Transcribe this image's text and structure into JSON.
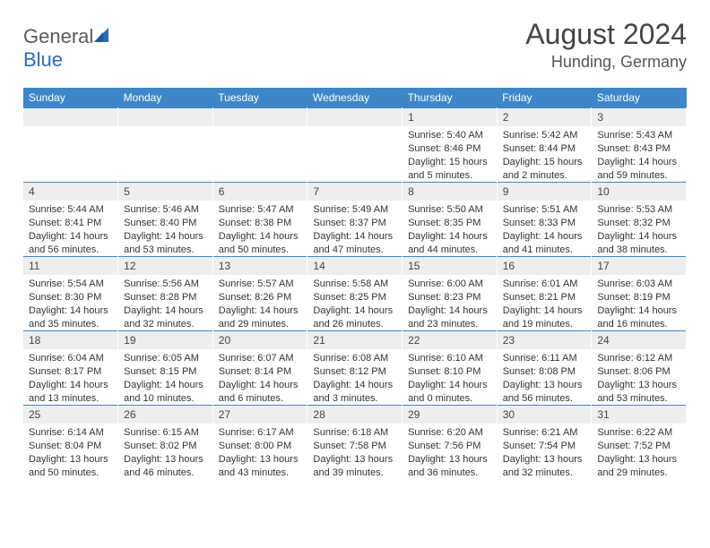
{
  "brand": {
    "general": "General",
    "blue": "Blue"
  },
  "title": {
    "month": "August 2024",
    "location": "Hunding, Germany"
  },
  "days_of_week": [
    "Sunday",
    "Monday",
    "Tuesday",
    "Wednesday",
    "Thursday",
    "Friday",
    "Saturday"
  ],
  "colors": {
    "header_bg": "#3d87c9",
    "header_text": "#ffffff",
    "daynum_bg": "#eceeef",
    "sail": "#2a6db8",
    "text": "#333333"
  },
  "weeks": [
    [
      {
        "n": "",
        "sr": "",
        "ss": "",
        "dl": ""
      },
      {
        "n": "",
        "sr": "",
        "ss": "",
        "dl": ""
      },
      {
        "n": "",
        "sr": "",
        "ss": "",
        "dl": ""
      },
      {
        "n": "",
        "sr": "",
        "ss": "",
        "dl": ""
      },
      {
        "n": "1",
        "sr": "Sunrise: 5:40 AM",
        "ss": "Sunset: 8:46 PM",
        "dl": "Daylight: 15 hours and 5 minutes."
      },
      {
        "n": "2",
        "sr": "Sunrise: 5:42 AM",
        "ss": "Sunset: 8:44 PM",
        "dl": "Daylight: 15 hours and 2 minutes."
      },
      {
        "n": "3",
        "sr": "Sunrise: 5:43 AM",
        "ss": "Sunset: 8:43 PM",
        "dl": "Daylight: 14 hours and 59 minutes."
      }
    ],
    [
      {
        "n": "4",
        "sr": "Sunrise: 5:44 AM",
        "ss": "Sunset: 8:41 PM",
        "dl": "Daylight: 14 hours and 56 minutes."
      },
      {
        "n": "5",
        "sr": "Sunrise: 5:46 AM",
        "ss": "Sunset: 8:40 PM",
        "dl": "Daylight: 14 hours and 53 minutes."
      },
      {
        "n": "6",
        "sr": "Sunrise: 5:47 AM",
        "ss": "Sunset: 8:38 PM",
        "dl": "Daylight: 14 hours and 50 minutes."
      },
      {
        "n": "7",
        "sr": "Sunrise: 5:49 AM",
        "ss": "Sunset: 8:37 PM",
        "dl": "Daylight: 14 hours and 47 minutes."
      },
      {
        "n": "8",
        "sr": "Sunrise: 5:50 AM",
        "ss": "Sunset: 8:35 PM",
        "dl": "Daylight: 14 hours and 44 minutes."
      },
      {
        "n": "9",
        "sr": "Sunrise: 5:51 AM",
        "ss": "Sunset: 8:33 PM",
        "dl": "Daylight: 14 hours and 41 minutes."
      },
      {
        "n": "10",
        "sr": "Sunrise: 5:53 AM",
        "ss": "Sunset: 8:32 PM",
        "dl": "Daylight: 14 hours and 38 minutes."
      }
    ],
    [
      {
        "n": "11",
        "sr": "Sunrise: 5:54 AM",
        "ss": "Sunset: 8:30 PM",
        "dl": "Daylight: 14 hours and 35 minutes."
      },
      {
        "n": "12",
        "sr": "Sunrise: 5:56 AM",
        "ss": "Sunset: 8:28 PM",
        "dl": "Daylight: 14 hours and 32 minutes."
      },
      {
        "n": "13",
        "sr": "Sunrise: 5:57 AM",
        "ss": "Sunset: 8:26 PM",
        "dl": "Daylight: 14 hours and 29 minutes."
      },
      {
        "n": "14",
        "sr": "Sunrise: 5:58 AM",
        "ss": "Sunset: 8:25 PM",
        "dl": "Daylight: 14 hours and 26 minutes."
      },
      {
        "n": "15",
        "sr": "Sunrise: 6:00 AM",
        "ss": "Sunset: 8:23 PM",
        "dl": "Daylight: 14 hours and 23 minutes."
      },
      {
        "n": "16",
        "sr": "Sunrise: 6:01 AM",
        "ss": "Sunset: 8:21 PM",
        "dl": "Daylight: 14 hours and 19 minutes."
      },
      {
        "n": "17",
        "sr": "Sunrise: 6:03 AM",
        "ss": "Sunset: 8:19 PM",
        "dl": "Daylight: 14 hours and 16 minutes."
      }
    ],
    [
      {
        "n": "18",
        "sr": "Sunrise: 6:04 AM",
        "ss": "Sunset: 8:17 PM",
        "dl": "Daylight: 14 hours and 13 minutes."
      },
      {
        "n": "19",
        "sr": "Sunrise: 6:05 AM",
        "ss": "Sunset: 8:15 PM",
        "dl": "Daylight: 14 hours and 10 minutes."
      },
      {
        "n": "20",
        "sr": "Sunrise: 6:07 AM",
        "ss": "Sunset: 8:14 PM",
        "dl": "Daylight: 14 hours and 6 minutes."
      },
      {
        "n": "21",
        "sr": "Sunrise: 6:08 AM",
        "ss": "Sunset: 8:12 PM",
        "dl": "Daylight: 14 hours and 3 minutes."
      },
      {
        "n": "22",
        "sr": "Sunrise: 6:10 AM",
        "ss": "Sunset: 8:10 PM",
        "dl": "Daylight: 14 hours and 0 minutes."
      },
      {
        "n": "23",
        "sr": "Sunrise: 6:11 AM",
        "ss": "Sunset: 8:08 PM",
        "dl": "Daylight: 13 hours and 56 minutes."
      },
      {
        "n": "24",
        "sr": "Sunrise: 6:12 AM",
        "ss": "Sunset: 8:06 PM",
        "dl": "Daylight: 13 hours and 53 minutes."
      }
    ],
    [
      {
        "n": "25",
        "sr": "Sunrise: 6:14 AM",
        "ss": "Sunset: 8:04 PM",
        "dl": "Daylight: 13 hours and 50 minutes."
      },
      {
        "n": "26",
        "sr": "Sunrise: 6:15 AM",
        "ss": "Sunset: 8:02 PM",
        "dl": "Daylight: 13 hours and 46 minutes."
      },
      {
        "n": "27",
        "sr": "Sunrise: 6:17 AM",
        "ss": "Sunset: 8:00 PM",
        "dl": "Daylight: 13 hours and 43 minutes."
      },
      {
        "n": "28",
        "sr": "Sunrise: 6:18 AM",
        "ss": "Sunset: 7:58 PM",
        "dl": "Daylight: 13 hours and 39 minutes."
      },
      {
        "n": "29",
        "sr": "Sunrise: 6:20 AM",
        "ss": "Sunset: 7:56 PM",
        "dl": "Daylight: 13 hours and 36 minutes."
      },
      {
        "n": "30",
        "sr": "Sunrise: 6:21 AM",
        "ss": "Sunset: 7:54 PM",
        "dl": "Daylight: 13 hours and 32 minutes."
      },
      {
        "n": "31",
        "sr": "Sunrise: 6:22 AM",
        "ss": "Sunset: 7:52 PM",
        "dl": "Daylight: 13 hours and 29 minutes."
      }
    ]
  ]
}
